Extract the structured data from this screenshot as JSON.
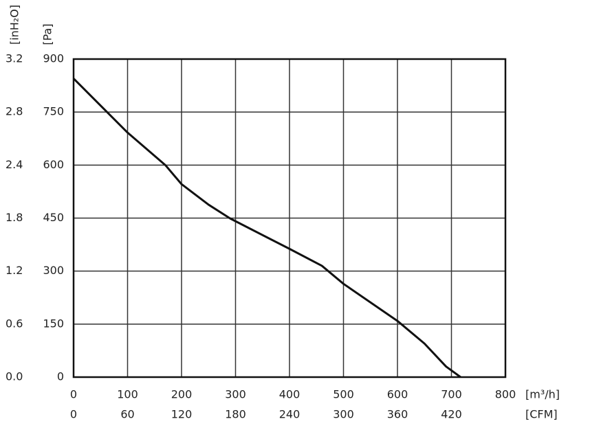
{
  "chart_data": {
    "type": "line",
    "x_label": "[m³/h]",
    "x2_label": "[CFM]",
    "y_label": "[Pa]",
    "y2_label": "[inH₂O]",
    "x": [
      0,
      100,
      170,
      200,
      250,
      290,
      400,
      460,
      500,
      600,
      650,
      690,
      717
    ],
    "series": [
      {
        "color": "#111111",
        "values": [
          845,
          692,
          600,
          546,
          488,
          449,
          363,
          315,
          264,
          159,
          95,
          30,
          0
        ]
      }
    ],
    "xlim": [
      0,
      800
    ],
    "xticks": [
      0,
      100,
      200,
      300,
      400,
      500,
      600,
      700,
      800
    ],
    "ylim": [
      0,
      900
    ],
    "yticks": [
      0,
      150,
      300,
      450,
      600,
      750,
      900
    ],
    "x2ticks": [
      0,
      60,
      120,
      180,
      240,
      300,
      360,
      420
    ],
    "y2ticks": [
      {
        "value": 0,
        "label": "0.0"
      },
      0.6,
      1.2,
      1.8,
      2.4,
      2.8,
      3.2
    ],
    "grid": true
  }
}
